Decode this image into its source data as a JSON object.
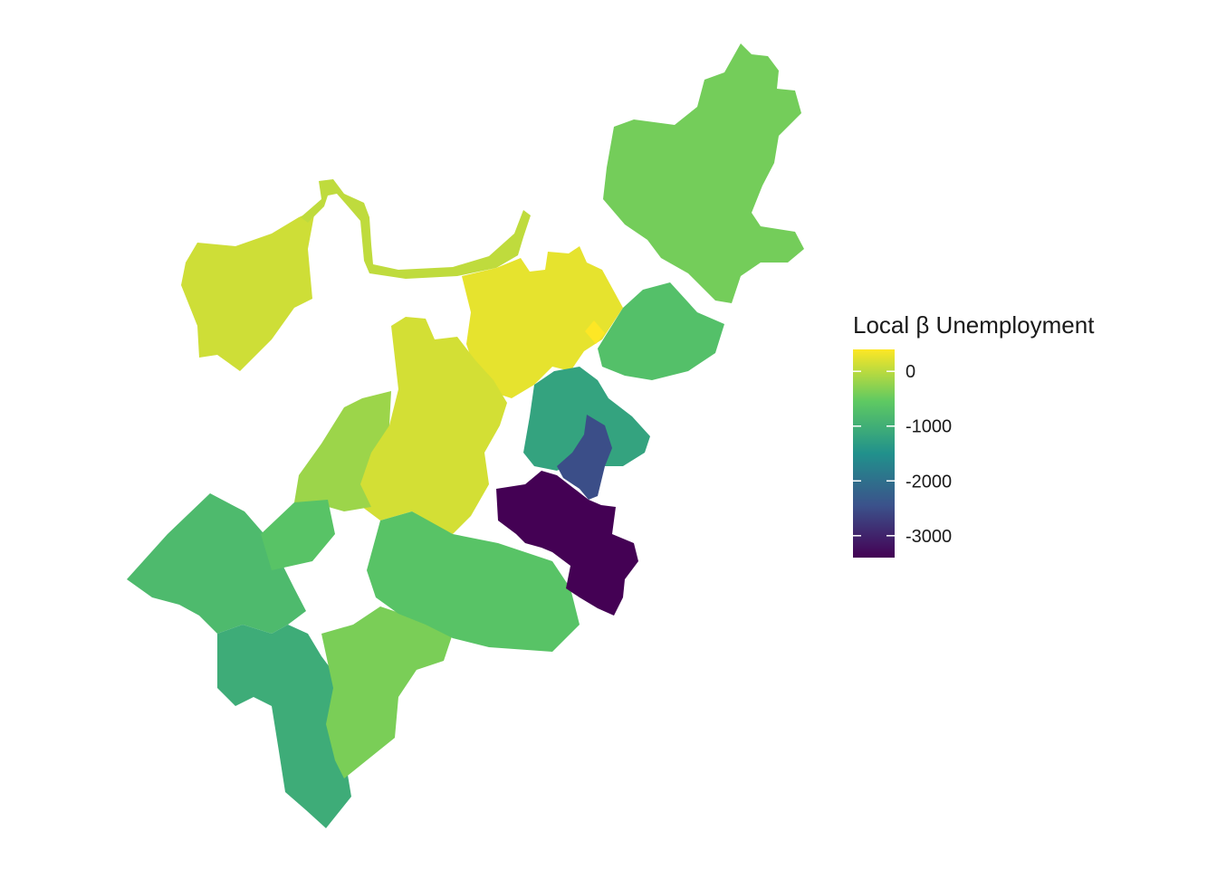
{
  "legend": {
    "title": "Local β Unemployment",
    "ticks": [
      {
        "value": 0,
        "label": "0"
      },
      {
        "value": -1000,
        "label": "-1000"
      },
      {
        "value": -2000,
        "label": "-2000"
      },
      {
        "value": -3000,
        "label": "-3000"
      }
    ],
    "range": [
      -3400,
      400
    ],
    "palette": "viridis",
    "stops": [
      "#440154",
      "#3b528b",
      "#21918c",
      "#5ec962",
      "#fde725"
    ]
  },
  "map": {
    "regions": [
      {
        "id": "northwest-block",
        "value": 120
      },
      {
        "id": "river-strip",
        "value": 30
      },
      {
        "id": "northeast-block",
        "value": -420
      },
      {
        "id": "north-center",
        "value": 260
      },
      {
        "id": "bright-spot",
        "value": 420
      },
      {
        "id": "center-core",
        "value": 150
      },
      {
        "id": "center-west",
        "value": -180
      },
      {
        "id": "west-cluster",
        "value": -800
      },
      {
        "id": "south-west-strip",
        "value": -1050
      },
      {
        "id": "south-green",
        "value": -380
      },
      {
        "id": "center-south",
        "value": -650
      },
      {
        "id": "east-coast",
        "value": -700
      },
      {
        "id": "east-teal",
        "value": -1200
      },
      {
        "id": "east-blue",
        "value": -2500
      },
      {
        "id": "east-dark",
        "value": -3400
      }
    ]
  }
}
